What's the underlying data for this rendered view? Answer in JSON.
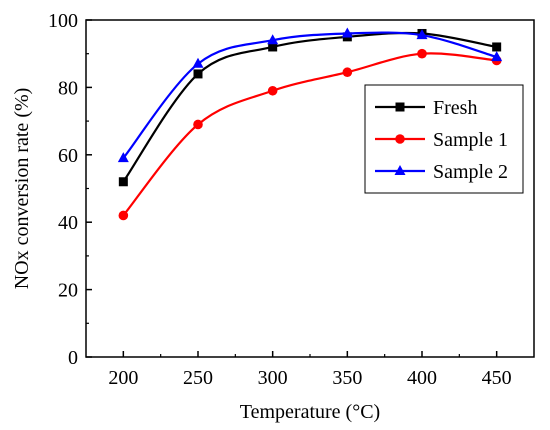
{
  "chart_data": {
    "type": "line",
    "title": "",
    "xlabel": "Temperature (°C)",
    "ylabel": "NOx conversion rate (%)",
    "x": [
      200,
      250,
      300,
      350,
      400,
      450
    ],
    "xlim": [
      175,
      475
    ],
    "ylim": [
      0,
      100
    ],
    "xticks": [
      200,
      250,
      300,
      350,
      400,
      450
    ],
    "yticks": [
      0,
      20,
      40,
      60,
      80,
      100
    ],
    "grid": false,
    "legend_position": "right",
    "smooth": true,
    "series": [
      {
        "name": "Fresh",
        "color": "#000000",
        "marker": "square",
        "values": [
          52,
          84,
          92,
          95,
          96,
          92
        ]
      },
      {
        "name": "Sample 1",
        "color": "#ff0000",
        "marker": "circle",
        "values": [
          42,
          69,
          79,
          84.5,
          90,
          88
        ]
      },
      {
        "name": "Sample 2",
        "color": "#0000ff",
        "marker": "triangle",
        "values": [
          59,
          87,
          94,
          96,
          95.5,
          89
        ]
      }
    ]
  }
}
